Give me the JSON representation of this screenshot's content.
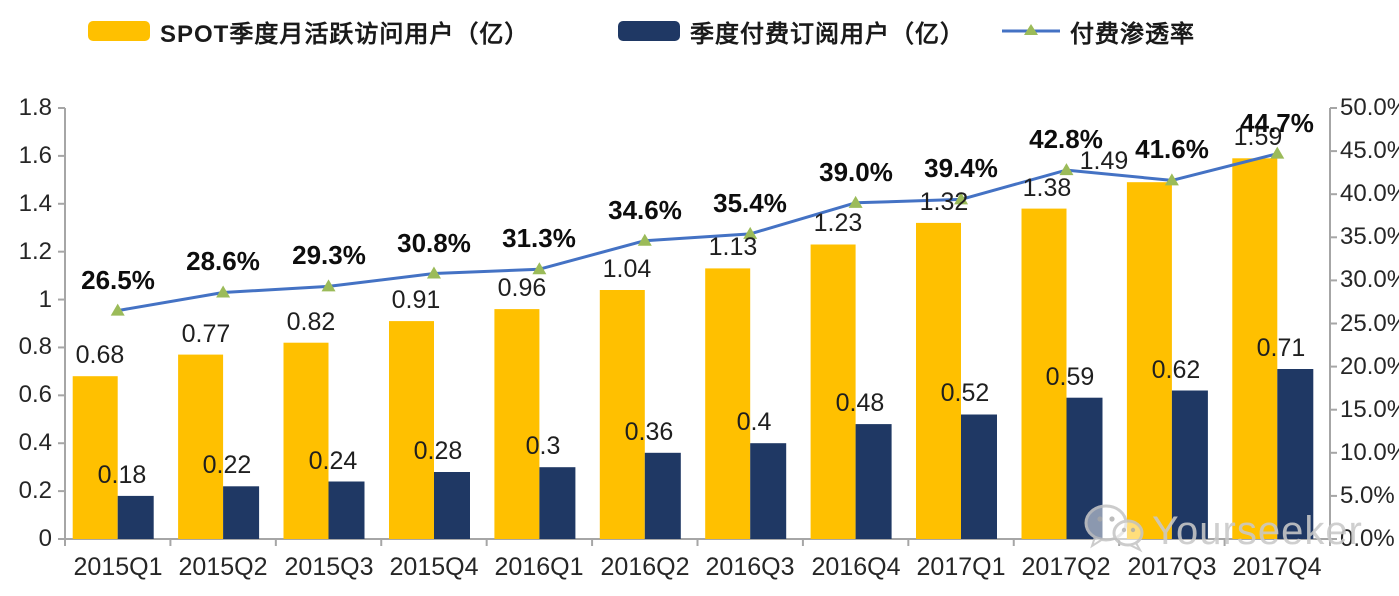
{
  "legend": {
    "items": [
      {
        "label": "SPOT季度月活跃访问用户（亿）",
        "swatch": "bar",
        "color": "#FFC000"
      },
      {
        "label": "季度付费订阅用户（亿）",
        "swatch": "bar",
        "color": "#1F3864"
      },
      {
        "label": "付费渗透率",
        "swatch": "line",
        "color": "#4472C4",
        "marker_color": "#9BBB59"
      }
    ]
  },
  "watermark": {
    "text": "Yourseeker",
    "icon": "wechat-icon",
    "color": "#c9c9c9"
  },
  "chart_data": {
    "type": "combo",
    "categories": [
      "2015Q1",
      "2015Q2",
      "2015Q3",
      "2015Q4",
      "2016Q1",
      "2016Q2",
      "2016Q3",
      "2016Q4",
      "2017Q1",
      "2017Q2",
      "2017Q3",
      "2017Q4"
    ],
    "series": [
      {
        "name": "SPOT季度月活跃访问用户（亿）",
        "type": "bar",
        "axis": "left",
        "color": "#FFC000",
        "values": [
          0.68,
          0.77,
          0.82,
          0.91,
          0.96,
          1.04,
          1.13,
          1.23,
          1.32,
          1.38,
          1.49,
          1.59
        ]
      },
      {
        "name": "季度付费订阅用户（亿）",
        "type": "bar",
        "axis": "left",
        "color": "#1F3864",
        "values": [
          0.18,
          0.22,
          0.24,
          0.28,
          0.3,
          0.36,
          0.4,
          0.48,
          0.52,
          0.59,
          0.62,
          0.71
        ]
      },
      {
        "name": "付费渗透率",
        "type": "line",
        "axis": "right",
        "color": "#4472C4",
        "marker": "triangle",
        "marker_color": "#9BBB59",
        "values": [
          26.5,
          28.6,
          29.3,
          30.8,
          31.3,
          34.6,
          35.4,
          39.0,
          39.4,
          42.8,
          41.6,
          44.7
        ],
        "labels": [
          "26.5%",
          "28.6%",
          "29.3%",
          "30.8%",
          "31.3%",
          "34.6%",
          "35.4%",
          "39.0%",
          "39.4%",
          "42.8%",
          "41.6%",
          "44.7%"
        ]
      }
    ],
    "left_axis": {
      "min": 0,
      "max": 1.8,
      "tick_labels": [
        "1.8",
        "1.6",
        "1.4",
        "1.2",
        "1",
        "0.8",
        "0.6",
        "0.4",
        "0.2",
        "0"
      ]
    },
    "right_axis": {
      "min": 0,
      "max": 50,
      "tick_labels": [
        "50.0%",
        "45.0%",
        "40.0%",
        "35.0%",
        "30.0%",
        "25.0%",
        "20.0%",
        "15.0%",
        "10.0%",
        "5.0%",
        "0.0%"
      ]
    },
    "grid": false,
    "legend_position": "top",
    "axis_color": "#A6A6A6"
  }
}
